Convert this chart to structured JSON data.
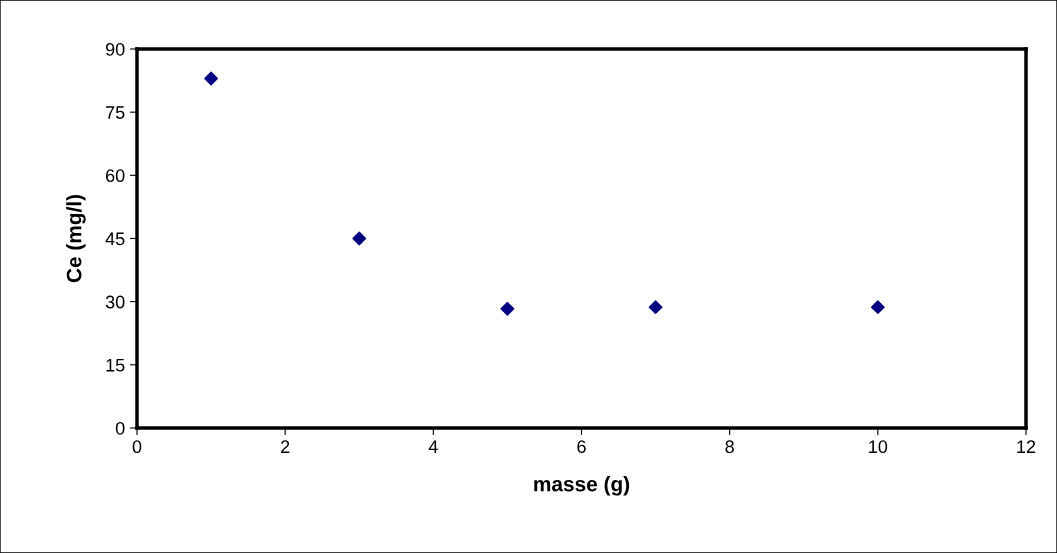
{
  "chart_data": {
    "type": "scatter",
    "xlabel": "masse (g)",
    "ylabel": "Ce (mg/l)",
    "x": [
      1,
      3,
      5,
      7,
      10
    ],
    "series": [
      {
        "color": "#000080",
        "values": [
          83,
          45,
          28.3,
          28.7,
          28.7
        ]
      }
    ],
    "xlim": [
      0,
      12
    ],
    "xticks": [
      0,
      2,
      4,
      6,
      8,
      10,
      12
    ],
    "ylim": [
      0,
      90
    ],
    "yticks": [
      0,
      15,
      30,
      45,
      60,
      75,
      90
    ],
    "marker": "diamond",
    "grid": false,
    "legend": false
  }
}
